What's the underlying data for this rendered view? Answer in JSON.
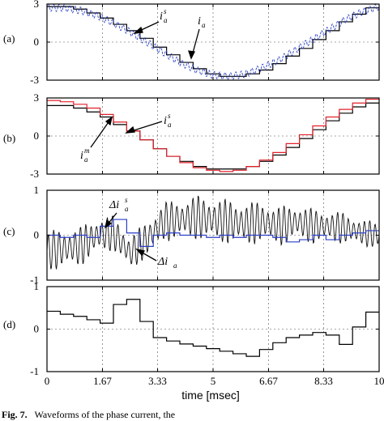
{
  "chart_data": [
    {
      "type": "line",
      "panel_label": "(a)",
      "ylim": [
        -3,
        3
      ],
      "yticks": [
        "3",
        "0",
        "-3"
      ],
      "xlim": [
        0,
        10
      ],
      "grid": true,
      "annotations": [
        {
          "base": "i",
          "sub": "a",
          "sup": "s"
        },
        {
          "base": "i",
          "sub": "a",
          "sup": ""
        }
      ],
      "series": [
        {
          "key": "staircase",
          "color": "#000000",
          "step": true,
          "x": [
            0,
            0.4,
            0.8,
            1.2,
            1.6,
            2.0,
            2.4,
            2.8,
            3.2,
            3.6,
            4.0,
            4.4,
            4.8,
            5.2,
            5.6,
            6.0,
            6.4,
            6.8,
            7.2,
            7.6,
            8.0,
            8.4,
            8.8,
            9.2,
            9.6
          ],
          "y": [
            2.8,
            2.8,
            2.6,
            2.3,
            1.9,
            1.4,
            0.9,
            0.3,
            -0.4,
            -1.0,
            -1.6,
            -2.1,
            -2.5,
            -2.7,
            -2.7,
            -2.5,
            -2.2,
            -1.7,
            -1.1,
            -0.5,
            0.2,
            0.9,
            1.6,
            2.2,
            2.7
          ]
        },
        {
          "key": "ripple",
          "color": "#2b3fc4",
          "dashed": true,
          "ripple": 0.28,
          "x": [
            0,
            0.5,
            1.0,
            1.5,
            2.0,
            2.5,
            3.0,
            3.5,
            4.0,
            4.5,
            5.0,
            5.5,
            6.0,
            6.5,
            7.0,
            7.5,
            8.0,
            8.5,
            9.0,
            9.5,
            10
          ],
          "y": [
            2.7,
            2.7,
            2.5,
            2.1,
            1.5,
            0.8,
            0.0,
            -0.8,
            -1.6,
            -2.2,
            -2.6,
            -2.7,
            -2.5,
            -2.0,
            -1.4,
            -0.6,
            0.2,
            1.0,
            1.8,
            2.4,
            2.8
          ]
        }
      ]
    },
    {
      "type": "line",
      "panel_label": "(b)",
      "ylim": [
        -3,
        3
      ],
      "yticks": [
        "3",
        "0",
        "-3"
      ],
      "xlim": [
        0,
        10
      ],
      "grid": true,
      "annotations": [
        {
          "base": "i",
          "sub": "a",
          "sup": "s"
        },
        {
          "base": "i",
          "sub": "a",
          "sup": "m"
        }
      ],
      "series": [
        {
          "key": "measured",
          "color": "#000000",
          "step": true,
          "x": [
            0,
            0.4,
            0.8,
            1.2,
            1.6,
            2.0,
            2.4,
            2.8,
            3.2,
            3.6,
            4.0,
            4.4,
            4.8,
            5.2,
            5.6,
            6.0,
            6.4,
            6.8,
            7.2,
            7.6,
            8.0,
            8.4,
            8.8,
            9.2,
            9.6
          ],
          "y": [
            2.4,
            2.4,
            2.2,
            1.9,
            1.5,
            0.9,
            0.4,
            -0.3,
            -1.0,
            -1.6,
            -2.0,
            -2.4,
            -2.6,
            -2.6,
            -2.6,
            -2.4,
            -2.0,
            -1.5,
            -0.9,
            -0.2,
            0.5,
            1.2,
            1.8,
            2.3,
            2.6
          ]
        },
        {
          "key": "sampled",
          "color": "#e0202a",
          "step": true,
          "x": [
            0,
            0.4,
            0.8,
            1.2,
            1.6,
            2.0,
            2.4,
            2.8,
            3.2,
            3.6,
            4.0,
            4.4,
            4.8,
            5.2,
            5.6,
            6.0,
            6.4,
            6.8,
            7.2,
            7.6,
            8.0,
            8.4,
            8.8,
            9.2,
            9.6
          ],
          "y": [
            2.8,
            2.7,
            2.5,
            2.2,
            1.7,
            1.1,
            0.4,
            -0.3,
            -1.0,
            -1.6,
            -2.1,
            -2.5,
            -2.7,
            -2.8,
            -2.7,
            -2.4,
            -1.9,
            -1.3,
            -0.6,
            0.1,
            0.8,
            1.5,
            2.1,
            2.6,
            2.9
          ]
        }
      ]
    },
    {
      "type": "line",
      "panel_label": "(c)",
      "ylim": [
        -1,
        1
      ],
      "yticks": [
        "1",
        "0",
        "-1"
      ],
      "xlim": [
        0,
        10
      ],
      "grid": true,
      "annotations": [
        {
          "base": "Δi",
          "sub": "a",
          "sup": "s"
        },
        {
          "base": "Δi",
          "sub": "a",
          "sup": ""
        }
      ],
      "series": [
        {
          "key": "error",
          "color": "#111111",
          "ripple_env": true,
          "x": [
            0,
            0.5,
            1.0,
            1.5,
            2.0,
            2.5,
            3.0,
            3.5,
            4.0,
            4.5,
            5.0,
            5.5,
            6.0,
            6.5,
            7.0,
            7.5,
            8.0,
            8.5,
            9.0,
            9.5,
            10
          ],
          "y": [
            -0.35,
            -0.3,
            -0.25,
            0.0,
            0.05,
            -0.4,
            -0.1,
            0.3,
            0.35,
            0.4,
            0.35,
            0.3,
            0.25,
            0.3,
            0.2,
            0.3,
            0.2,
            0.2,
            0.15,
            0.05,
            0.0
          ],
          "amp": [
            0.45,
            0.45,
            0.45,
            0.4,
            0.4,
            0.4,
            0.4,
            0.45,
            0.45,
            0.5,
            0.5,
            0.5,
            0.5,
            0.45,
            0.45,
            0.4,
            0.4,
            0.35,
            0.35,
            0.3,
            0.3
          ]
        },
        {
          "key": "sampled_error",
          "color": "#2b3fc4",
          "step": true,
          "x": [
            0,
            0.4,
            0.8,
            1.2,
            1.6,
            2.0,
            2.4,
            2.8,
            3.2,
            3.6,
            4.0,
            4.4,
            4.8,
            5.2,
            5.6,
            6.0,
            6.4,
            6.8,
            7.2,
            7.6,
            8.0,
            8.4,
            8.8,
            9.2,
            9.6
          ],
          "y": [
            0.0,
            -0.05,
            0.0,
            -0.05,
            0.2,
            0.35,
            0.05,
            -0.25,
            0.0,
            0.05,
            0.0,
            0.0,
            -0.05,
            0.0,
            -0.05,
            0.0,
            0.0,
            -0.05,
            -0.15,
            -0.1,
            0.0,
            -0.1,
            0.0,
            0.05,
            0.1
          ]
        }
      ]
    },
    {
      "type": "line",
      "panel_label": "(d)",
      "ylim": [
        -1,
        1
      ],
      "yticks": [
        "1",
        "0",
        "-1"
      ],
      "xlim": [
        0,
        10
      ],
      "grid": true,
      "annotations": [],
      "series": [
        {
          "key": "output",
          "color": "#000000",
          "step": true,
          "x": [
            0,
            0.4,
            0.8,
            1.2,
            1.6,
            2.0,
            2.4,
            2.8,
            3.2,
            3.6,
            4.0,
            4.4,
            4.8,
            5.2,
            5.6,
            6.0,
            6.4,
            6.8,
            7.2,
            7.6,
            8.0,
            8.4,
            8.8,
            9.2,
            9.6
          ],
          "y": [
            0.42,
            0.35,
            0.3,
            0.22,
            0.14,
            0.58,
            0.7,
            0.18,
            -0.2,
            -0.28,
            -0.35,
            -0.4,
            -0.46,
            -0.52,
            -0.58,
            -0.64,
            -0.48,
            -0.32,
            -0.2,
            -0.14,
            -0.08,
            -0.14,
            -0.36,
            0.05,
            0.4
          ]
        }
      ]
    }
  ],
  "xaxis": {
    "ticks": [
      "0",
      "1.67",
      "3.33",
      "5",
      "6.67",
      "8.33",
      "10"
    ],
    "tick_values": [
      0,
      1.67,
      3.33,
      5,
      6.67,
      8.33,
      10
    ],
    "label": "time [msec]"
  },
  "caption": {
    "fig": "Fig. 7.",
    "text": "Waveforms of the phase current, the "
  }
}
